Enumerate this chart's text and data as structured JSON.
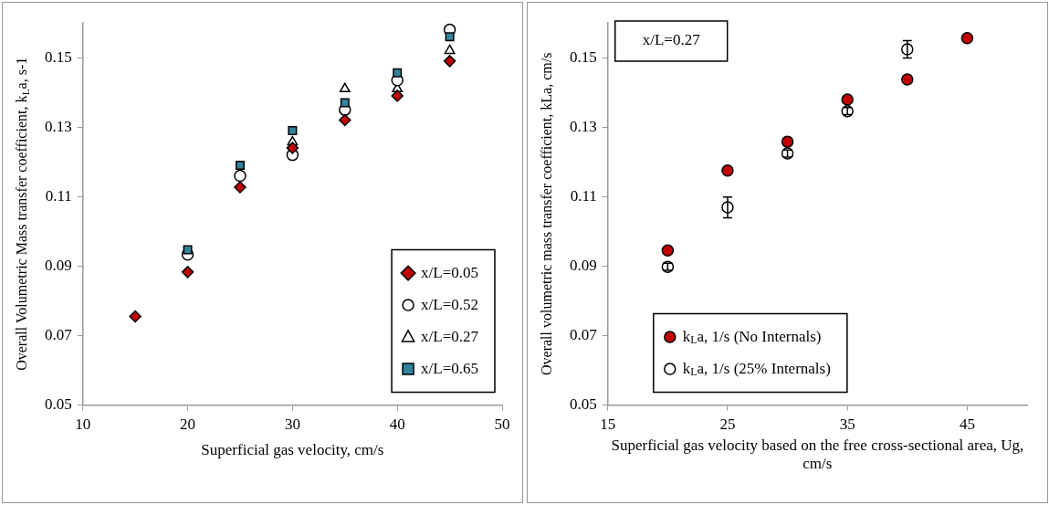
{
  "chart_data": [
    {
      "type": "scatter",
      "xlabel": "Superficial gas velocity, cm/s",
      "ylabel": "Overall Volumetric Mass transfer coefficient, k$_{L}$a, s-1",
      "x": [
        15,
        20,
        25,
        30,
        35,
        40,
        45
      ],
      "xlim": [
        10,
        50
      ],
      "xticks": [
        10,
        20,
        30,
        40,
        50
      ],
      "ylim": [
        0.05,
        0.16
      ],
      "yticks": [
        0.05,
        0.07,
        0.09,
        0.11,
        0.13,
        0.15
      ],
      "legend": "bottom right",
      "grid": false,
      "series": [
        {
          "name": "x/L=0.05",
          "color": "#c00000",
          "marker": "diamond",
          "values": [
            0.0755,
            0.0883,
            0.1127,
            0.124,
            0.132,
            0.139,
            0.149
          ]
        },
        {
          "name": "x/L=0.52",
          "color": "#ffffff",
          "marker": "circle",
          "values": [
            null,
            0.0933,
            0.116,
            0.122,
            0.135,
            0.1435,
            0.158
          ]
        },
        {
          "name": "x/L=0.27",
          "color": "#ffffff",
          "marker": "triangle",
          "values": [
            null,
            null,
            null,
            0.1257,
            0.141,
            0.141,
            0.152
          ]
        },
        {
          "name": "x/L=0.65",
          "color": "#31849b",
          "marker": "square",
          "values": [
            null,
            0.0947,
            0.119,
            0.129,
            0.137,
            0.1456,
            0.156
          ]
        }
      ]
    },
    {
      "type": "scatter",
      "xlabel": "Superficial gas velocity based on the free cross-sectional area, Ug, cm/s",
      "ylabel": "Overall volumetric mass transfer coefficient, kLa, cm/s",
      "annotations": [
        "x/L=0.27"
      ],
      "x": [
        20,
        25,
        30,
        35,
        40,
        45
      ],
      "xlim": [
        15,
        50
      ],
      "xticks": [
        15,
        25,
        35,
        45
      ],
      "ylim": [
        0.05,
        0.16
      ],
      "yticks": [
        0.05,
        0.07,
        0.09,
        0.11,
        0.13,
        0.15
      ],
      "legend": "bottom left",
      "grid": false,
      "series": [
        {
          "name": "k$_{L}$a, 1/s (No Internals)",
          "color": "#c00000",
          "marker": "circle",
          "values": [
            0.0945,
            0.1175,
            0.1258,
            0.1379,
            0.1437,
            0.1556
          ]
        },
        {
          "name": "k$_{L}$a, 1/s (25% Internals)",
          "color": "#ffffff",
          "marker": "circle",
          "values": [
            0.0898,
            0.1069,
            0.1224,
            0.1346,
            0.1524,
            null
          ],
          "errors": [
            0.001,
            0.003,
            0.001,
            0.001,
            0.0025,
            null
          ]
        }
      ]
    }
  ]
}
